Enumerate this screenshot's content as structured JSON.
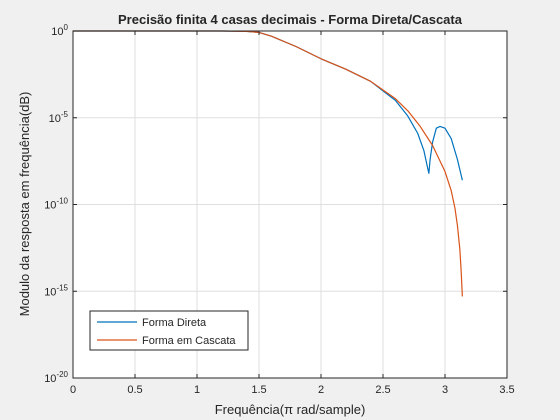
{
  "chart_data": {
    "type": "line",
    "title": "Precisão finita 4 casas decimais - Forma Direta/Cascata",
    "xlabel": "Frequência(π rad/sample)",
    "ylabel": "Modulo da resposta em frequência(dB)",
    "xlim": [
      0,
      3.5
    ],
    "ylim_exp": [
      -20,
      0
    ],
    "yscale": "log",
    "grid": true,
    "legend_position": "bottom-left",
    "xticks": [
      {
        "value": 0,
        "label": "0"
      },
      {
        "value": 0.5,
        "label": "0.5"
      },
      {
        "value": 1,
        "label": "1"
      },
      {
        "value": 1.5,
        "label": "1.5"
      },
      {
        "value": 2,
        "label": "2"
      },
      {
        "value": 2.5,
        "label": "2.5"
      },
      {
        "value": 3,
        "label": "3"
      },
      {
        "value": 3.5,
        "label": "3.5"
      }
    ],
    "yticks": [
      {
        "exp": 0,
        "base": "10",
        "sup": "0"
      },
      {
        "exp": -5,
        "base": "10",
        "sup": "-5"
      },
      {
        "exp": -10,
        "base": "10",
        "sup": "-10"
      },
      {
        "exp": -15,
        "base": "10",
        "sup": "-15"
      },
      {
        "exp": -20,
        "base": "10",
        "sup": "-20"
      }
    ],
    "series": [
      {
        "name": "Forma Direta",
        "color": "#0072bd",
        "x": [
          0,
          0.5,
          1.0,
          1.2,
          1.4,
          1.5,
          1.6,
          1.8,
          2.0,
          2.2,
          2.4,
          2.6,
          2.7,
          2.78,
          2.83,
          2.86,
          2.87,
          2.88,
          2.9,
          2.93,
          2.96,
          3.0,
          3.05,
          3.1,
          3.14
        ],
        "y_exp": [
          0,
          0,
          0,
          0,
          -0.02,
          -0.08,
          -0.3,
          -0.9,
          -1.6,
          -2.2,
          -2.9,
          -4.0,
          -4.9,
          -5.9,
          -6.9,
          -7.9,
          -8.2,
          -7.4,
          -6.4,
          -5.6,
          -5.5,
          -5.6,
          -6.2,
          -7.4,
          -8.6
        ]
      },
      {
        "name": "Forma em Cascata",
        "color": "#d95319",
        "x": [
          0,
          0.5,
          1.0,
          1.2,
          1.4,
          1.5,
          1.6,
          1.8,
          2.0,
          2.2,
          2.4,
          2.6,
          2.7,
          2.8,
          2.9,
          3.0,
          3.05,
          3.08,
          3.1,
          3.12,
          3.13,
          3.14
        ],
        "y_exp": [
          0,
          0,
          0,
          0,
          -0.02,
          -0.08,
          -0.3,
          -0.9,
          -1.6,
          -2.2,
          -2.9,
          -3.9,
          -4.6,
          -5.5,
          -6.6,
          -8.1,
          -9.2,
          -10.2,
          -11.2,
          -12.6,
          -13.8,
          -15.3
        ]
      }
    ]
  }
}
